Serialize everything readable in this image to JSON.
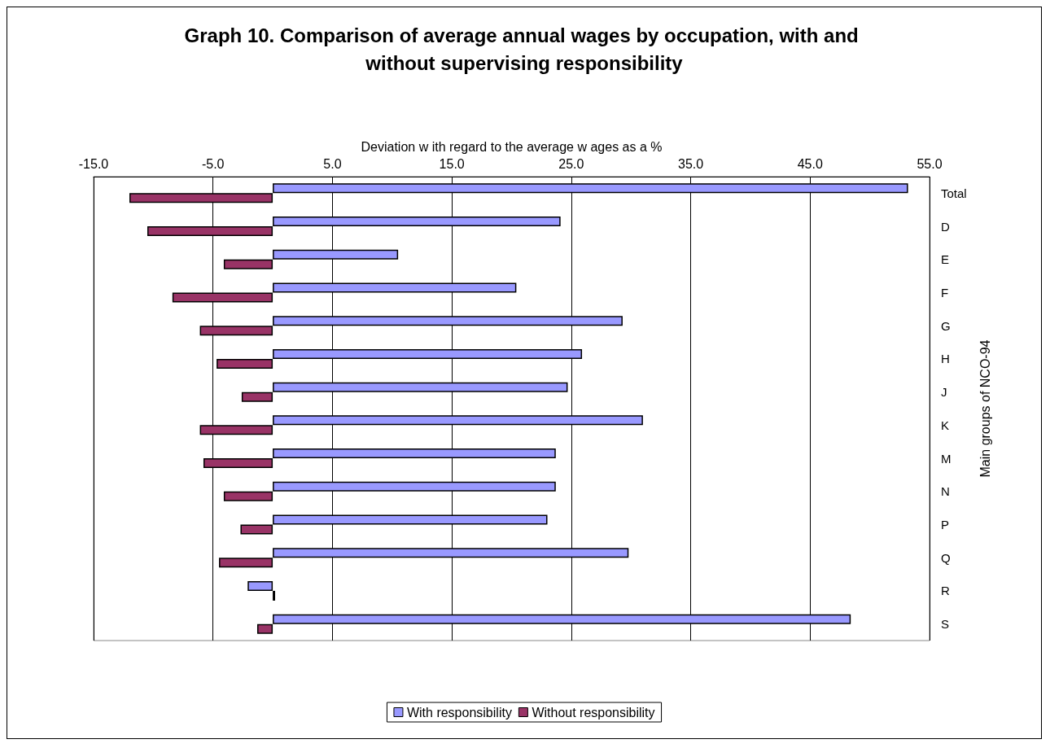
{
  "chart_data": {
    "type": "bar",
    "orientation": "horizontal",
    "title": "Graph 10. Comparison of average annual wages by occupation, with and without supervising responsibility",
    "xlabel": "Deviation w ith regard to the average w ages as a %",
    "ylabel": "Main groups of NCO-94",
    "categories": [
      "Total",
      "D",
      "E",
      "F",
      "G",
      "H",
      "J",
      "K",
      "M",
      "N",
      "P",
      "Q",
      "R",
      "S"
    ],
    "series": [
      {
        "name": "With responsibility",
        "color": "#9999ff",
        "values": [
          53.2,
          24.1,
          10.5,
          20.4,
          29.3,
          25.9,
          24.7,
          31.0,
          23.7,
          23.7,
          23.0,
          29.8,
          -2.1,
          48.4
        ]
      },
      {
        "name": "Without responsibility",
        "color": "#993366",
        "values": [
          -12.0,
          -10.5,
          -4.1,
          -8.4,
          -6.1,
          -4.7,
          -2.6,
          -6.1,
          -5.8,
          -4.1,
          -2.7,
          -4.5,
          0.2,
          -1.3
        ]
      }
    ],
    "xlim": [
      -15,
      55
    ],
    "xticks": [
      {
        "value": -15,
        "label": "-15.0"
      },
      {
        "value": -5,
        "label": "-5.0"
      },
      {
        "value": 5,
        "label": "5.0"
      },
      {
        "value": 15,
        "label": "15.0"
      },
      {
        "value": 25,
        "label": "25.0"
      },
      {
        "value": 35,
        "label": "35.0"
      },
      {
        "value": 45,
        "label": "45.0"
      },
      {
        "value": 55,
        "label": "55.0"
      }
    ],
    "grid": "x",
    "legend": "bottom"
  }
}
